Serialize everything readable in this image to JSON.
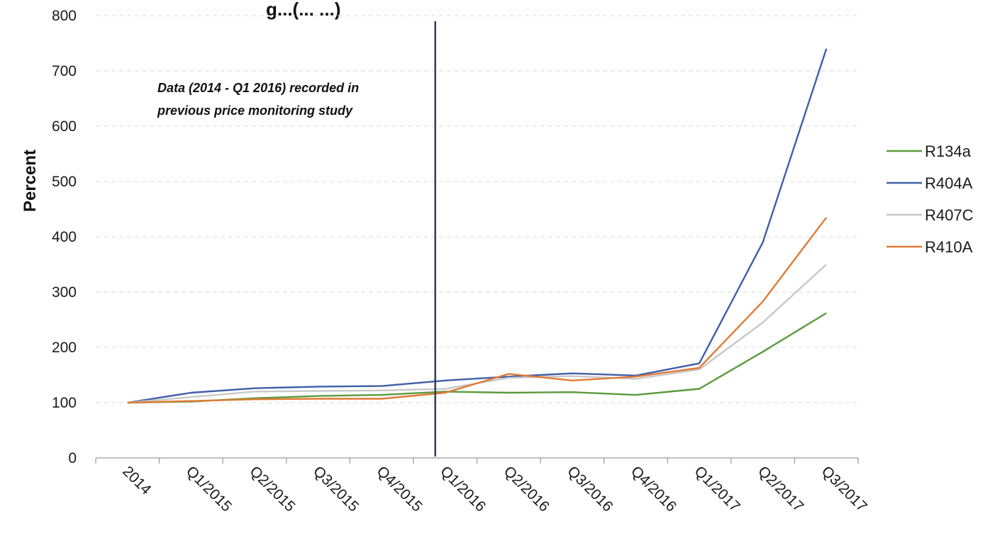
{
  "chart_data": {
    "type": "line",
    "title_fragment": "g...(... ...)",
    "xlabel": "",
    "ylabel": "Percent",
    "ylim": [
      0,
      800
    ],
    "yticks": [
      0,
      100,
      200,
      300,
      400,
      500,
      600,
      700,
      800
    ],
    "categories": [
      "2014",
      "Q1/2015",
      "Q2/2015",
      "Q3/2015",
      "Q4/2015",
      "Q1/2016",
      "Q2/2016",
      "Q3/2016",
      "Q4/2016",
      "Q1/2017",
      "Q2/2017",
      "Q3/2017"
    ],
    "grid": true,
    "legend_position": "right",
    "series": [
      {
        "name": "R134a",
        "color": "#5b9a3c",
        "values": [
          100,
          102,
          108,
          112,
          114,
          120,
          118,
          119,
          114,
          125,
          192,
          262
        ]
      },
      {
        "name": "R404A",
        "color": "#3f5fa8",
        "values": [
          100,
          118,
          126,
          129,
          130,
          140,
          147,
          153,
          149,
          171,
          390,
          740
        ]
      },
      {
        "name": "R407C",
        "color": "#c8c8c8",
        "values": [
          100,
          110,
          120,
          121,
          122,
          125,
          145,
          148,
          143,
          160,
          245,
          350
        ]
      },
      {
        "name": "R410A",
        "color": "#e07a35",
        "values": [
          100,
          103,
          106,
          107,
          107,
          118,
          152,
          140,
          147,
          163,
          283,
          435
        ]
      }
    ],
    "annotations": [
      {
        "text_line1": "Data (2014 - Q1 2016) recorded in",
        "text_line2": "previous price monitoring study"
      }
    ],
    "vertical_marker": {
      "at_category": "Q1/2016",
      "color": "#2f3f5a"
    }
  }
}
